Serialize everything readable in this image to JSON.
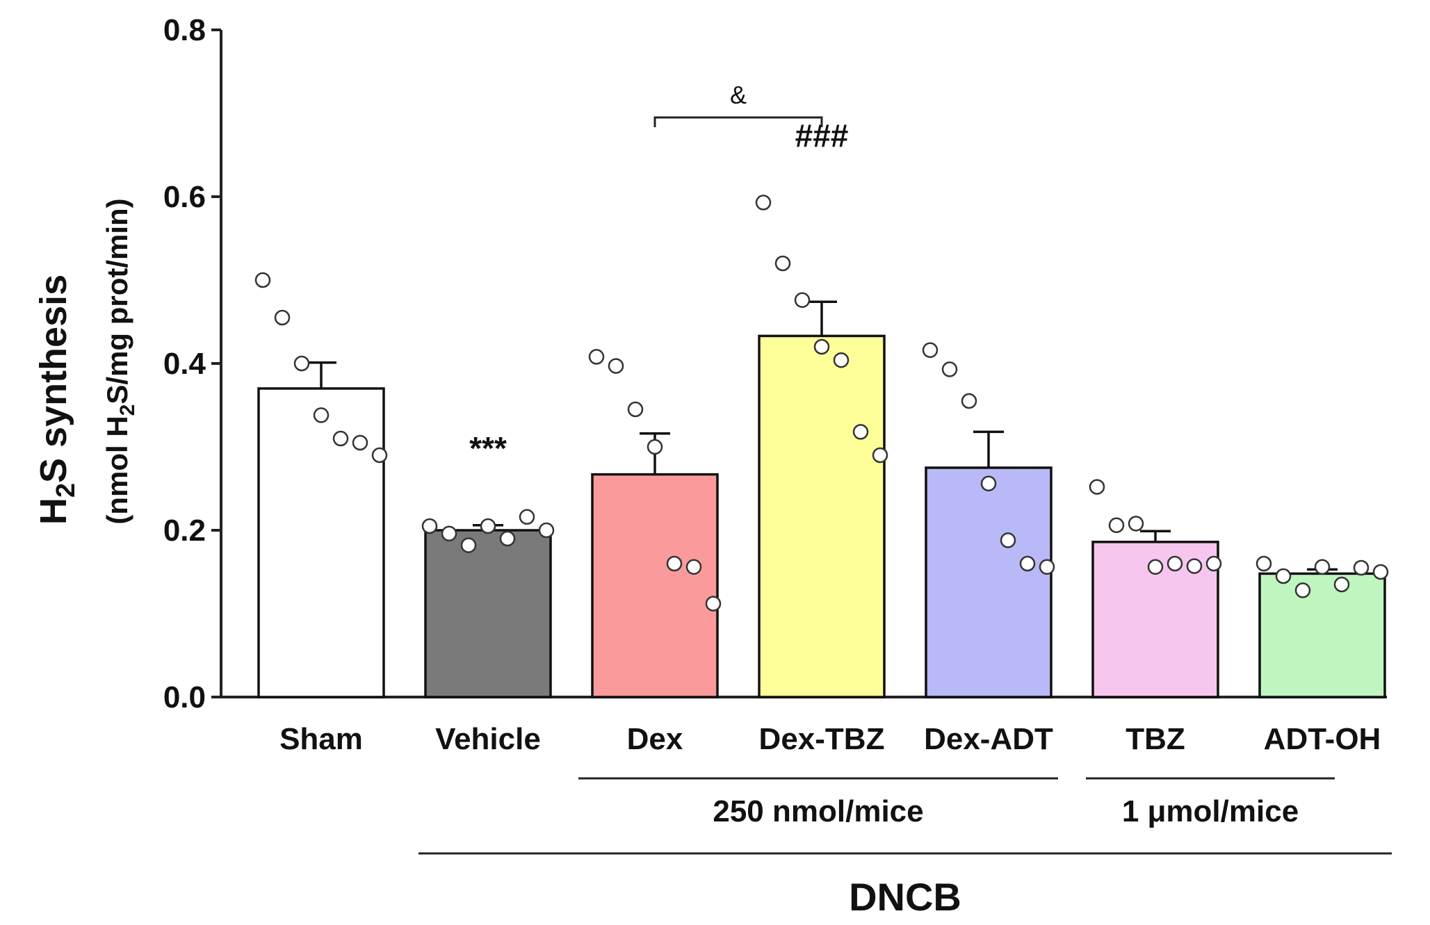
{
  "chart_data": {
    "type": "bar",
    "ylabel": "H2S synthesis",
    "ylabel_parts": {
      "pre": "H",
      "sub": "2",
      "post": "S synthesis"
    },
    "ylabel_units": "(nmol H2S/mg prot/min)",
    "ylabel_units_parts": {
      "pre": "(nmol H",
      "sub": "2",
      "post": "S/mg prot/min)"
    },
    "ylim": [
      0,
      0.8
    ],
    "yticks": [
      0.0,
      0.2,
      0.4,
      0.6,
      0.8
    ],
    "ytick_labels": [
      "0.0",
      "0.2",
      "0.4",
      "0.6",
      "0.8"
    ],
    "categories": [
      "Sham",
      "Vehicle",
      "Dex",
      "Dex-TBZ",
      "Dex-ADT",
      "TBZ",
      "ADT-OH"
    ],
    "values": [
      0.37,
      0.2,
      0.267,
      0.433,
      0.275,
      0.186,
      0.148
    ],
    "errors": [
      0.031,
      0.006,
      0.049,
      0.041,
      0.043,
      0.013,
      0.005
    ],
    "colors": [
      "#ffffff",
      "#7a7a7a",
      "#fa9a9a",
      "#ffff99",
      "#b9b9f7",
      "#f7c6ee",
      "#bff5bf"
    ],
    "points": [
      [
        0.5,
        0.455,
        0.4,
        0.338,
        0.31,
        0.305,
        0.29
      ],
      [
        0.205,
        0.196,
        0.182,
        0.205,
        0.19,
        0.216,
        0.2
      ],
      [
        0.408,
        0.397,
        0.345,
        0.3,
        0.16,
        0.156,
        0.112
      ],
      [
        0.593,
        0.52,
        0.476,
        0.42,
        0.404,
        0.318,
        0.29
      ],
      [
        0.416,
        0.393,
        0.355,
        0.256,
        0.188,
        0.16,
        0.156
      ],
      [
        0.252,
        0.206,
        0.208,
        0.156,
        0.16,
        0.157,
        0.16
      ],
      [
        0.16,
        0.145,
        0.128,
        0.156,
        0.135,
        0.155,
        0.15
      ]
    ],
    "annotations": [
      {
        "category": "Vehicle",
        "text": "***",
        "y": 0.285
      },
      {
        "category": "Dex-TBZ",
        "text": "###",
        "y": 0.66
      }
    ],
    "comparison": {
      "from": "Dex",
      "to": "Dex-TBZ",
      "text": "&",
      "y": 0.72
    },
    "groups": [
      {
        "label": "250 nmol/mice",
        "from": "Dex",
        "to": "Dex-ADT",
        "level": 1
      },
      {
        "label": "1 μmol/mice",
        "from": "TBZ",
        "to": "ADT-OH",
        "level": 1
      },
      {
        "label": "DNCB",
        "from": "Vehicle",
        "to": "ADT-OH",
        "level": 2
      }
    ]
  }
}
